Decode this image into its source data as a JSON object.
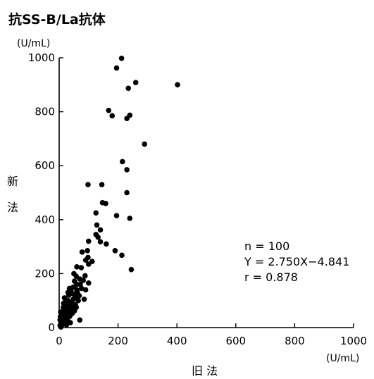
{
  "chart_data": {
    "type": "scatter",
    "title": "抗SS-B/La抗体",
    "ylabel": "新法",
    "xlabel": "旧 法",
    "y_unit": "(U/mL)",
    "x_unit": "(U/mL)",
    "xlim": [
      0,
      1000
    ],
    "ylim": [
      0,
      1000
    ],
    "x_ticks": [
      "0",
      "200",
      "400",
      "600",
      "800",
      "1000"
    ],
    "y_ticks": [
      "0",
      "200",
      "400",
      "600",
      "800",
      "1000"
    ],
    "grid": false,
    "annotations": [
      "n = 100",
      "Y = 2.750X−4.841",
      "r = 0.878"
    ],
    "marker_color": "#000000",
    "points": [
      [
        212,
        998
      ],
      [
        195,
        962
      ],
      [
        260,
        908
      ],
      [
        402,
        900
      ],
      [
        235,
        887
      ],
      [
        168,
        805
      ],
      [
        180,
        785
      ],
      [
        240,
        787
      ],
      [
        230,
        775
      ],
      [
        290,
        680
      ],
      [
        215,
        615
      ],
      [
        230,
        585
      ],
      [
        98,
        530
      ],
      [
        145,
        530
      ],
      [
        230,
        500
      ],
      [
        147,
        463
      ],
      [
        158,
        460
      ],
      [
        125,
        425
      ],
      [
        240,
        405
      ],
      [
        195,
        415
      ],
      [
        128,
        380
      ],
      [
        140,
        362
      ],
      [
        125,
        345
      ],
      [
        132,
        335
      ],
      [
        100,
        320
      ],
      [
        160,
        310
      ],
      [
        140,
        318
      ],
      [
        96,
        285
      ],
      [
        78,
        280
      ],
      [
        190,
        285
      ],
      [
        213,
        268
      ],
      [
        98,
        260
      ],
      [
        90,
        250
      ],
      [
        112,
        245
      ],
      [
        100,
        235
      ],
      [
        245,
        215
      ],
      [
        60,
        225
      ],
      [
        75,
        222
      ],
      [
        58,
        190
      ],
      [
        88,
        192
      ],
      [
        70,
        180
      ],
      [
        82,
        175
      ],
      [
        100,
        165
      ],
      [
        60,
        160
      ],
      [
        48,
        150
      ],
      [
        76,
        145
      ],
      [
        90,
        140
      ],
      [
        62,
        130
      ],
      [
        40,
        135
      ],
      [
        55,
        115
      ],
      [
        33,
        120
      ],
      [
        48,
        105
      ],
      [
        30,
        100
      ],
      [
        65,
        100
      ],
      [
        42,
        95
      ],
      [
        22,
        88
      ],
      [
        35,
        80
      ],
      [
        55,
        85
      ],
      [
        14,
        75
      ],
      [
        26,
        70
      ],
      [
        42,
        68
      ],
      [
        18,
        60
      ],
      [
        32,
        55
      ],
      [
        10,
        50
      ],
      [
        24,
        45
      ],
      [
        4,
        40
      ],
      [
        15,
        38
      ],
      [
        28,
        30
      ],
      [
        8,
        25
      ],
      [
        20,
        20
      ],
      [
        38,
        18
      ],
      [
        12,
        12
      ],
      [
        3,
        8
      ],
      [
        25,
        10
      ],
      [
        6,
        2
      ],
      [
        70,
        28
      ],
      [
        52,
        62
      ],
      [
        45,
        78
      ],
      [
        68,
        118
      ],
      [
        85,
        105
      ],
      [
        35,
        145
      ],
      [
        52,
        172
      ],
      [
        18,
        110
      ],
      [
        30,
        130
      ],
      [
        50,
        200
      ],
      [
        15,
        90
      ],
      [
        5,
        58
      ],
      [
        10,
        32
      ],
      [
        36,
        42
      ],
      [
        48,
        125
      ],
      [
        60,
        140
      ],
      [
        72,
        160
      ],
      [
        22,
        98
      ],
      [
        40,
        88
      ],
      [
        28,
        65
      ],
      [
        58,
        75
      ],
      [
        15,
        15
      ],
      [
        9,
        18
      ],
      [
        3,
        28
      ],
      [
        44,
        52
      ]
    ]
  }
}
